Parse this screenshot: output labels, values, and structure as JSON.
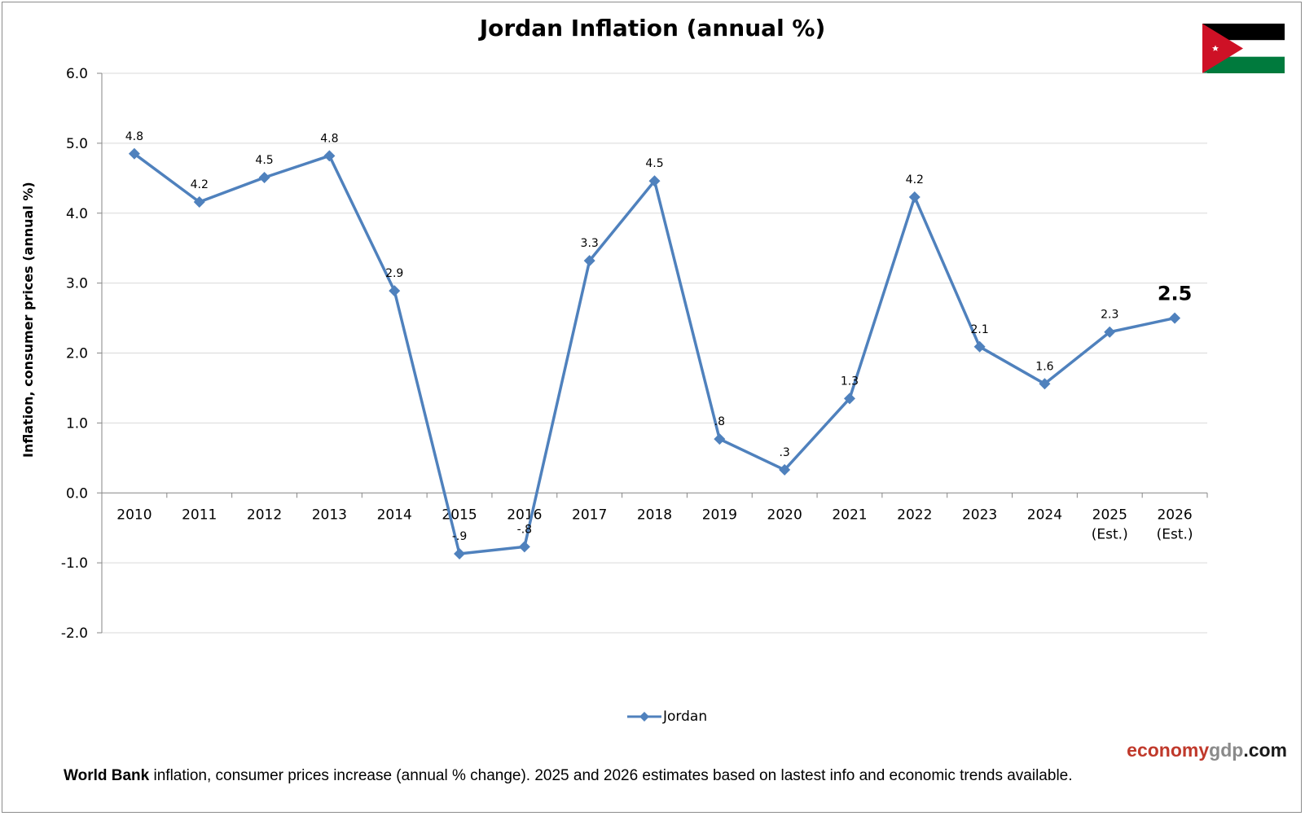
{
  "title": "Jordan Inflation (annual %)",
  "footnote": {
    "source_bold": "World Bank",
    "text": " inflation, consumer prices increase (annual % change).  2025 and 2026 estimates based on lastest info and economic trends available."
  },
  "brand": {
    "part1": "economy",
    "part2": "gdp",
    "part3": ".com"
  },
  "colors": {
    "series": "#4f81bd",
    "grid": "#d9d9d9",
    "axis": "#868686",
    "flag_black": "#000000",
    "flag_green": "#007a3d",
    "flag_red": "#ce1126",
    "brand_red": "#c0392b",
    "brand_gray": "#8a8a8a"
  },
  "chart_data": {
    "type": "line",
    "title": "Jordan Inflation (annual %)",
    "xlabel": "",
    "ylabel": "Inflation, consumer prices (annual %)",
    "ylim": [
      -2.0,
      6.0
    ],
    "yticks": [
      "-2.0",
      "-1.0",
      "0.0",
      "1.0",
      "2.0",
      "3.0",
      "4.0",
      "5.0",
      "6.0"
    ],
    "grid": true,
    "legend_position": "bottom",
    "categories": [
      [
        "2010"
      ],
      [
        "2011"
      ],
      [
        "2012"
      ],
      [
        "2013"
      ],
      [
        "2014"
      ],
      [
        "2015"
      ],
      [
        "2016"
      ],
      [
        "2017"
      ],
      [
        "2018"
      ],
      [
        "2019"
      ],
      [
        "2020"
      ],
      [
        "2021"
      ],
      [
        "2022"
      ],
      [
        "2023"
      ],
      [
        "2024"
      ],
      [
        "2025",
        "(Est.)"
      ],
      [
        "2026",
        "(Est.)"
      ]
    ],
    "series": [
      {
        "name": "Jordan",
        "values": [
          4.85,
          4.16,
          4.51,
          4.82,
          2.89,
          -0.87,
          -0.77,
          3.32,
          4.46,
          0.77,
          0.33,
          1.35,
          4.23,
          2.09,
          1.56,
          2.3,
          2.5
        ],
        "labels": [
          "4.8",
          "4.2",
          "4.5",
          "4.8",
          "2.9",
          "-.9",
          "-.8",
          "3.3",
          "4.5",
          ".8",
          ".3",
          "1.3",
          "4.2",
          "2.1",
          "1.6",
          "2.3",
          "2.5"
        ]
      }
    ],
    "highlight_last_label": true
  }
}
